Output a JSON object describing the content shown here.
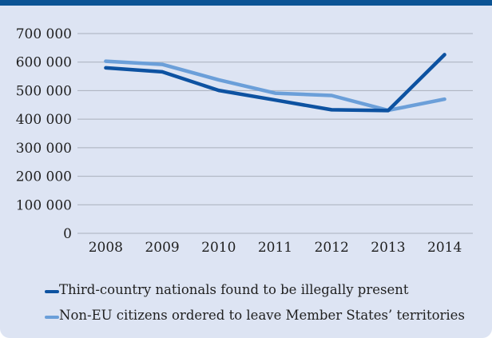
{
  "colors": {
    "top_rule": "#0b5394",
    "panel_bg": "#dde4f3",
    "gridline": "#a9b0bc",
    "series_1": "#0d52a1",
    "series_2": "#6b9fd9"
  },
  "chart_data": {
    "type": "line",
    "title": "",
    "xlabel": "",
    "ylabel": "",
    "categories": [
      "2008",
      "2009",
      "2010",
      "2011",
      "2012",
      "2013",
      "2014"
    ],
    "ylim": [
      0,
      700000
    ],
    "y_ticks": [
      0,
      100000,
      200000,
      300000,
      400000,
      500000,
      600000,
      700000
    ],
    "y_tick_labels": [
      "0",
      "100 000",
      "200 000",
      "300 000",
      "400 000",
      "500 000",
      "600 000",
      "700 000"
    ],
    "grid": "horizontal",
    "legend_position": "bottom",
    "series": [
      {
        "name": "Third-country nationals found to be illegally present",
        "color_key": "series_1",
        "values": [
          580000,
          566000,
          501000,
          467000,
          433000,
          430000,
          626000
        ]
      },
      {
        "name": "Non-EU citizens ordered to leave Member States’ territories",
        "color_key": "series_2",
        "values": [
          603000,
          592000,
          538000,
          491000,
          483000,
          431000,
          470000
        ]
      }
    ]
  }
}
